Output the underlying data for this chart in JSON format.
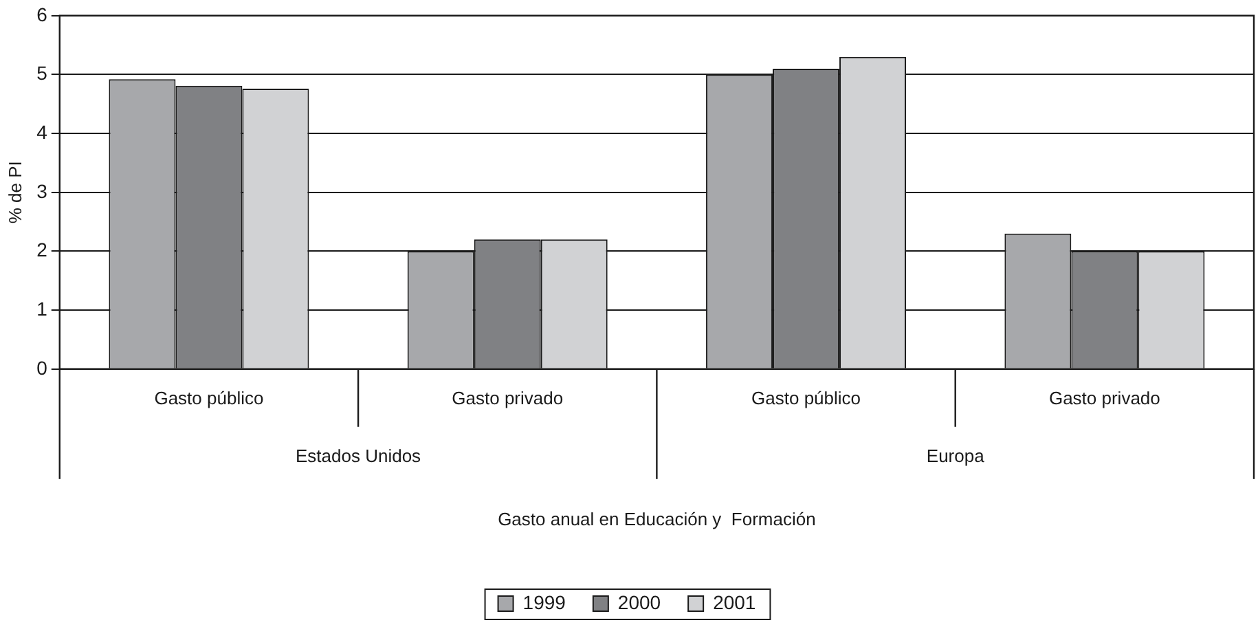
{
  "chart_data": {
    "type": "bar",
    "categories": [
      "Gasto público",
      "Gasto privado",
      "Gasto público",
      "Gasto privado"
    ],
    "series": [
      {
        "name": "1999",
        "color": "#a7a8ab",
        "values": [
          4.92,
          2.0,
          5.0,
          2.3
        ]
      },
      {
        "name": "2000",
        "color": "#808184",
        "values": [
          4.81,
          2.2,
          5.1,
          2.0
        ]
      },
      {
        "name": "2001",
        "color": "#d1d2d4",
        "values": [
          4.76,
          2.2,
          5.3,
          2.0
        ]
      }
    ],
    "ylabel": "% de PI",
    "annotations": [
      "Estados Unidos",
      "Europa",
      "Gasto anual en Educación y  Formación"
    ],
    "ylim": [
      0,
      6
    ],
    "yticks": [
      0,
      1,
      2,
      3,
      4,
      5,
      6
    ],
    "grid": "y",
    "legend": "bottom"
  }
}
